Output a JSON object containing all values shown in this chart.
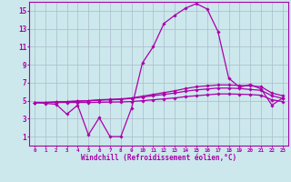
{
  "x": [
    0,
    1,
    2,
    3,
    4,
    5,
    6,
    7,
    8,
    9,
    10,
    11,
    12,
    13,
    14,
    15,
    16,
    17,
    18,
    19,
    20,
    21,
    22,
    23
  ],
  "line1": [
    4.8,
    4.7,
    4.6,
    3.5,
    4.5,
    1.2,
    3.1,
    1.0,
    1.0,
    4.2,
    9.2,
    11.0,
    13.6,
    14.5,
    15.3,
    15.8,
    15.2,
    12.7,
    7.5,
    6.5,
    6.8,
    6.3,
    4.5,
    5.3
  ],
  "line2": [
    4.8,
    4.8,
    4.85,
    4.9,
    4.95,
    5.0,
    5.1,
    5.15,
    5.2,
    5.3,
    5.5,
    5.7,
    5.9,
    6.1,
    6.35,
    6.55,
    6.65,
    6.75,
    6.75,
    6.7,
    6.65,
    6.55,
    5.85,
    5.55
  ],
  "line3": [
    4.8,
    4.8,
    4.85,
    4.9,
    4.95,
    5.0,
    5.05,
    5.1,
    5.15,
    5.25,
    5.4,
    5.55,
    5.7,
    5.85,
    6.05,
    6.2,
    6.3,
    6.4,
    6.4,
    6.35,
    6.25,
    6.15,
    5.55,
    5.25
  ],
  "line4": [
    4.8,
    4.8,
    4.8,
    4.8,
    4.8,
    4.8,
    4.82,
    4.84,
    4.86,
    4.9,
    5.0,
    5.1,
    5.2,
    5.3,
    5.45,
    5.55,
    5.65,
    5.75,
    5.75,
    5.72,
    5.68,
    5.6,
    5.1,
    4.9
  ],
  "line_color": "#aa00aa",
  "bg_color": "#cce8ec",
  "grid_color": "#aabbcc",
  "xlabel": "Windchill (Refroidissement éolien,°C)",
  "ylim": [
    0,
    16
  ],
  "xlim": [
    -0.5,
    23.5
  ],
  "yticks": [
    1,
    3,
    5,
    7,
    9,
    11,
    13,
    15
  ],
  "xticks": [
    0,
    1,
    2,
    3,
    4,
    5,
    6,
    7,
    8,
    9,
    10,
    11,
    12,
    13,
    14,
    15,
    16,
    17,
    18,
    19,
    20,
    21,
    22,
    23
  ]
}
